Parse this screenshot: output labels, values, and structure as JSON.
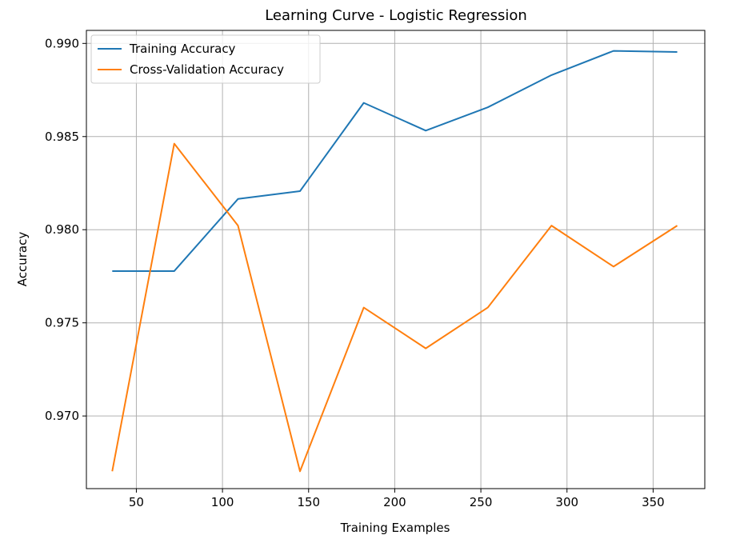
{
  "chart_data": {
    "type": "line",
    "title": "Learning Curve - Logistic Regression",
    "xlabel": "Training Examples",
    "ylabel": "Accuracy",
    "xlim": [
      21,
      380
    ],
    "ylim": [
      0.9661,
      0.9907
    ],
    "xticks": [
      50,
      100,
      150,
      200,
      250,
      300,
      350
    ],
    "yticks": [
      0.97,
      0.975,
      0.98,
      0.985,
      0.99
    ],
    "xtick_labels": [
      "50",
      "100",
      "150",
      "200",
      "250",
      "300",
      "350"
    ],
    "ytick_labels": [
      "0.970",
      "0.975",
      "0.980",
      "0.985",
      "0.990"
    ],
    "grid": true,
    "legend": {
      "placement": "top-left",
      "entries": [
        "Training Accuracy",
        "Cross-Validation Accuracy"
      ]
    },
    "x": [
      36,
      72,
      109,
      145,
      182,
      218,
      254,
      291,
      327,
      364
    ],
    "series": [
      {
        "name": "Training Accuracy",
        "color": "#1f77b4",
        "values": [
          0.97778,
          0.97778,
          0.98165,
          0.98207,
          0.98681,
          0.98532,
          0.98657,
          0.9883,
          0.9896,
          0.98954
        ]
      },
      {
        "name": "Cross-Validation Accuracy",
        "color": "#ff7f0e",
        "values": [
          0.96703,
          0.98462,
          0.98022,
          0.96703,
          0.97582,
          0.97363,
          0.97582,
          0.98022,
          0.97802,
          0.98022
        ]
      }
    ]
  }
}
